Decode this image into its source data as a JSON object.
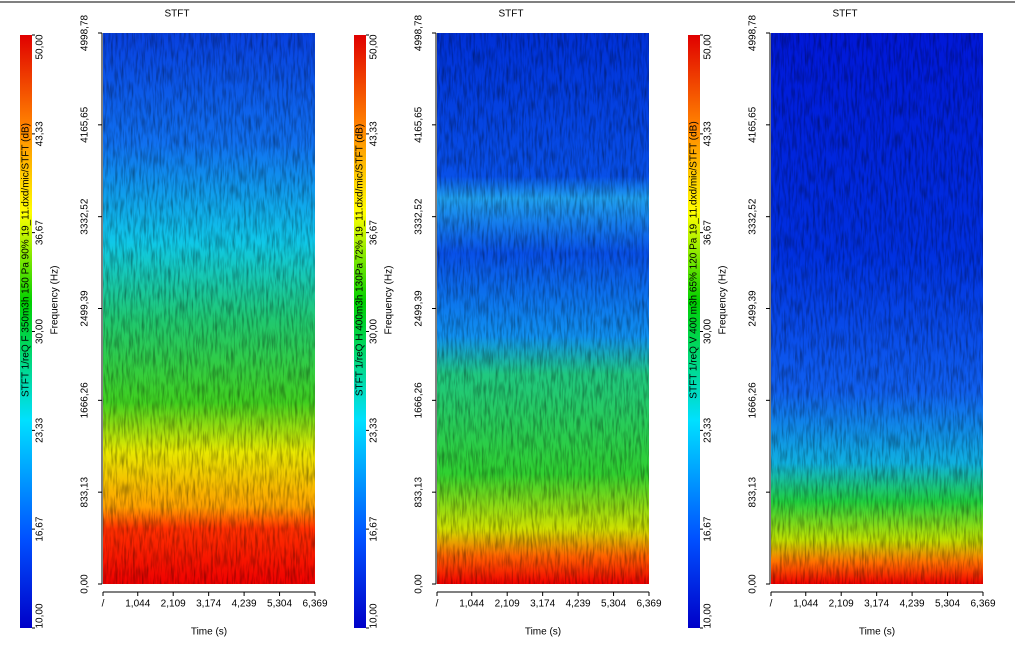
{
  "chart_data": [
    {
      "type": "spectrogram",
      "title": "STFT",
      "xlabel": "Time (s)",
      "ylabel": "Frequency (Hz)",
      "colorbar_label": "STFT 1/reQ F 350m3h 150 Pa 90% 19_11.dxd/mic/STFT (dB)",
      "xlim": [
        0,
        6.369
      ],
      "xticks": [
        {
          "value": 0,
          "label": "/"
        },
        {
          "value": 1.044,
          "label": "1,044"
        },
        {
          "value": 2.109,
          "label": "2,109"
        },
        {
          "value": 3.174,
          "label": "3,174"
        },
        {
          "value": 4.239,
          "label": "4,239"
        },
        {
          "value": 5.304,
          "label": "5,304"
        },
        {
          "value": 6.369,
          "label": "6,369"
        }
      ],
      "ylim": [
        0,
        4998.78
      ],
      "yticks": [
        {
          "value": 0,
          "label": "0,00"
        },
        {
          "value": 833.13,
          "label": "833,13"
        },
        {
          "value": 1666.26,
          "label": "1666,26"
        },
        {
          "value": 2499.39,
          "label": "2499,39"
        },
        {
          "value": 3332.52,
          "label": "3332,52"
        },
        {
          "value": 4165.65,
          "label": "4165,65"
        },
        {
          "value": 4998.78,
          "label": "4998,78"
        }
      ],
      "clim": [
        10,
        50
      ],
      "cticks": [
        {
          "value": 10,
          "label": "10,00"
        },
        {
          "value": 16.67,
          "label": "16,67"
        },
        {
          "value": 23.33,
          "label": "23,33"
        },
        {
          "value": 30,
          "label": "30,00"
        },
        {
          "value": 36.67,
          "label": "36,67"
        },
        {
          "value": 43.33,
          "label": "43,33"
        },
        {
          "value": 50,
          "label": "50,00"
        }
      ]
    },
    {
      "type": "spectrogram",
      "title": "STFT",
      "xlabel": "Time (s)",
      "ylabel": "Frequency (Hz)",
      "colorbar_label": "STFT 1/reQ H 400m3h 130Pa 72% 19_11.dxd/mic/STFT (dB)",
      "xlim": [
        0,
        6.369
      ],
      "xticks": [
        {
          "value": 0,
          "label": "/"
        },
        {
          "value": 1.044,
          "label": "1,044"
        },
        {
          "value": 2.109,
          "label": "2,109"
        },
        {
          "value": 3.174,
          "label": "3,174"
        },
        {
          "value": 4.239,
          "label": "4,239"
        },
        {
          "value": 5.304,
          "label": "5,304"
        },
        {
          "value": 6.369,
          "label": "6,369"
        }
      ],
      "ylim": [
        0,
        4998.78
      ],
      "yticks": [
        {
          "value": 0,
          "label": "0,00"
        },
        {
          "value": 833.13,
          "label": "833,13"
        },
        {
          "value": 1666.26,
          "label": "1666,26"
        },
        {
          "value": 2499.39,
          "label": "2499,39"
        },
        {
          "value": 3332.52,
          "label": "3332,52"
        },
        {
          "value": 4165.65,
          "label": "4165,65"
        },
        {
          "value": 4998.78,
          "label": "4998,78"
        }
      ],
      "clim": [
        10,
        50
      ],
      "cticks": [
        {
          "value": 10,
          "label": "10,00"
        },
        {
          "value": 16.67,
          "label": "16,67"
        },
        {
          "value": 23.33,
          "label": "23,33"
        },
        {
          "value": 30,
          "label": "30,00"
        },
        {
          "value": 36.67,
          "label": "36,67"
        },
        {
          "value": 43.33,
          "label": "43,33"
        },
        {
          "value": 50,
          "label": "50,00"
        }
      ]
    },
    {
      "type": "spectrogram",
      "title": "STFT",
      "xlabel": "Time (s)",
      "ylabel": "Frequency (Hz)",
      "colorbar_label": "STFT 1/reQ V 400 m3h 65% 120 Pa 19_11.dxd/mic/STFT (dB)",
      "xlim": [
        0,
        6.369
      ],
      "xticks": [
        {
          "value": 0,
          "label": "/"
        },
        {
          "value": 1.044,
          "label": "1,044"
        },
        {
          "value": 2.109,
          "label": "2,109"
        },
        {
          "value": 3.174,
          "label": "3,174"
        },
        {
          "value": 4.239,
          "label": "4,239"
        },
        {
          "value": 5.304,
          "label": "5,304"
        },
        {
          "value": 6.369,
          "label": "6,369"
        }
      ],
      "ylim": [
        0,
        4998.78
      ],
      "yticks": [
        {
          "value": 0,
          "label": "0,00"
        },
        {
          "value": 833.13,
          "label": "833,13"
        },
        {
          "value": 1666.26,
          "label": "1666,26"
        },
        {
          "value": 2499.39,
          "label": "2499,39"
        },
        {
          "value": 3332.52,
          "label": "3332,52"
        },
        {
          "value": 4165.65,
          "label": "4165,65"
        },
        {
          "value": 4998.78,
          "label": "4998,78"
        }
      ],
      "clim": [
        10,
        50
      ],
      "cticks": [
        {
          "value": 10,
          "label": "10,00"
        },
        {
          "value": 16.67,
          "label": "16,67"
        },
        {
          "value": 23.33,
          "label": "23,33"
        },
        {
          "value": 30,
          "label": "30,00"
        },
        {
          "value": 36.67,
          "label": "36,67"
        },
        {
          "value": 43.33,
          "label": "43,33"
        },
        {
          "value": 50,
          "label": "50,00"
        }
      ]
    }
  ]
}
